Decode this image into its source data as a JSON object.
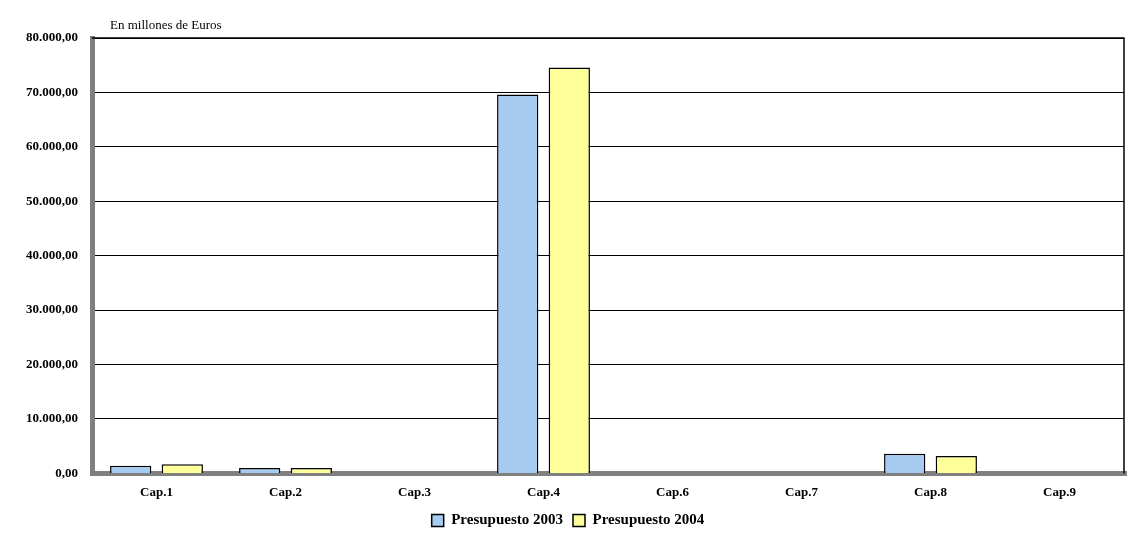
{
  "chart_data": {
    "type": "bar",
    "ylabel": "En millones de Euros",
    "categories": [
      "Cap.1",
      "Cap.2",
      "Cap.3",
      "Cap.4",
      "Cap.6",
      "Cap.7",
      "Cap.8",
      "Cap.9"
    ],
    "series": [
      {
        "name": "Presupuesto 2003",
        "color": "#a6caf0",
        "values": [
          1400,
          1000,
          0,
          69600,
          0,
          0,
          3600,
          0
        ]
      },
      {
        "name": "Presupuesto 2004",
        "color": "#ffff99",
        "values": [
          1700,
          1000,
          0,
          74600,
          0,
          0,
          3200,
          0
        ]
      }
    ],
    "ylim": [
      0,
      80000
    ],
    "yticks": [
      {
        "value": 0,
        "label": "0,00"
      },
      {
        "value": 10000,
        "label": "10.000,00"
      },
      {
        "value": 20000,
        "label": "20.000,00"
      },
      {
        "value": 30000,
        "label": "30.000,00"
      },
      {
        "value": 40000,
        "label": "40.000,00"
      },
      {
        "value": 50000,
        "label": "50.000,00"
      },
      {
        "value": 60000,
        "label": "60.000,00"
      },
      {
        "value": 70000,
        "label": "70.000,00"
      },
      {
        "value": 80000,
        "label": "80.000,00"
      }
    ],
    "grid": "y",
    "legend": "bottom"
  }
}
